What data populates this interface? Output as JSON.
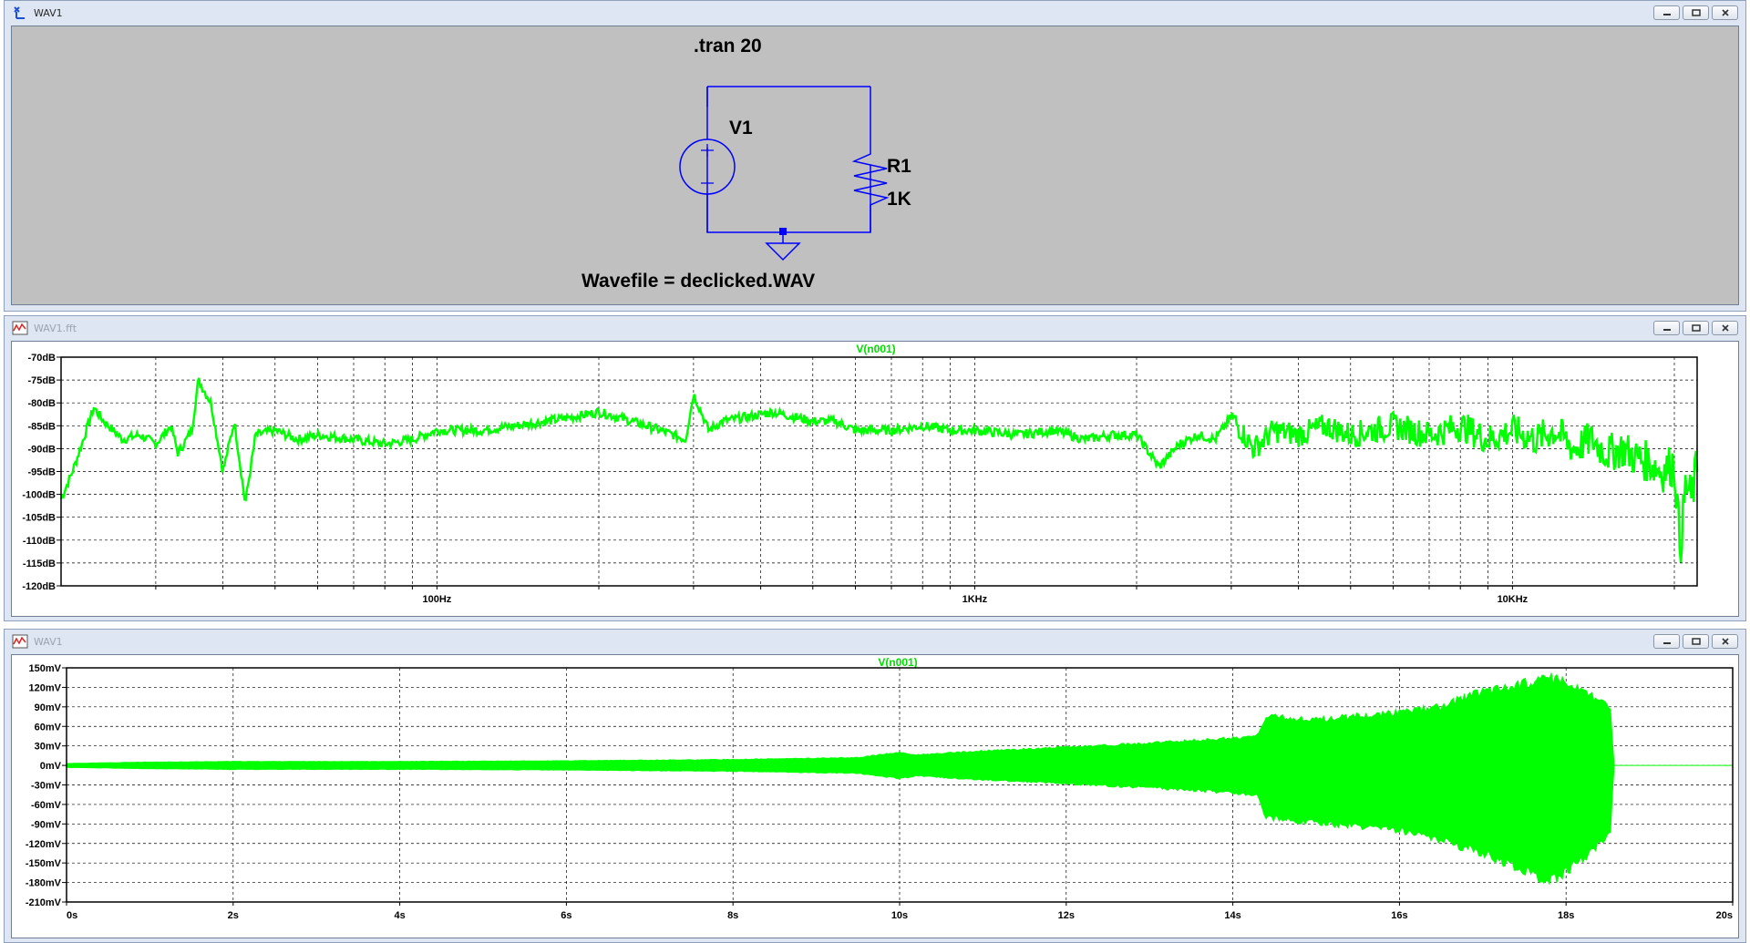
{
  "schematic_window": {
    "title": ".tran 20",
    "window_title": "WAV1",
    "directive": ".tran 20",
    "source_name": "V1",
    "resistor_name": "R1",
    "resistor_value": "1K",
    "wavefile_label": "Wavefile = declicked.WAV",
    "wire_color": "#0000ff"
  },
  "fft_window": {
    "window_title": "WAV1.fft",
    "trace_label": "V(n001)",
    "trace_color": "#00ff00",
    "chart_data": {
      "type": "line",
      "title": "",
      "xlabel": "",
      "ylabel": "",
      "x_scale": "log",
      "xlim": [
        20,
        22050
      ],
      "ylim": [
        -120,
        -70
      ],
      "y_tick_labels": [
        "-70dB",
        "-75dB",
        "-80dB",
        "-85dB",
        "-90dB",
        "-95dB",
        "-100dB",
        "-105dB",
        "-110dB",
        "-115dB",
        "-120dB"
      ],
      "y_ticks": [
        -70,
        -75,
        -80,
        -85,
        -90,
        -95,
        -100,
        -105,
        -110,
        -115,
        -120
      ],
      "x_tick_labels": [
        "100Hz",
        "1KHz",
        "10KHz"
      ],
      "x_ticks": [
        100,
        1000,
        10000
      ],
      "grid": true,
      "series": [
        {
          "name": "V(n001)",
          "x": [
            20,
            21,
            23,
            24,
            26,
            28,
            30,
            32,
            33,
            35,
            36,
            38,
            40,
            42,
            44,
            46,
            50,
            55,
            60,
            70,
            80,
            90,
            100,
            120,
            140,
            160,
            180,
            200,
            230,
            260,
            290,
            300,
            320,
            340,
            380,
            420,
            460,
            500,
            550,
            600,
            700,
            800,
            900,
            1000,
            1200,
            1400,
            1600,
            1800,
            2000,
            2200,
            2400,
            2600,
            2800,
            3000,
            3300,
            3600,
            4000,
            4500,
            5000,
            5500,
            6000,
            7000,
            8000,
            9000,
            10000,
            11000,
            12000,
            13000,
            14000,
            15000,
            16000,
            17000,
            18000,
            19000,
            20000,
            20500,
            21000,
            21500,
            22050
          ],
          "values": [
            -101,
            -95,
            -81,
            -84,
            -88,
            -87,
            -89,
            -85,
            -91,
            -86,
            -75,
            -80,
            -95,
            -84,
            -102,
            -87,
            -86,
            -88,
            -87,
            -88,
            -89,
            -88,
            -86,
            -86,
            -85,
            -84,
            -83,
            -82,
            -84,
            -86,
            -88,
            -78,
            -86,
            -84,
            -83,
            -82,
            -83,
            -84,
            -84,
            -86,
            -86,
            -85,
            -86,
            -86,
            -87,
            -86,
            -88,
            -87,
            -87,
            -94,
            -89,
            -87,
            -88,
            -83,
            -90,
            -86,
            -87,
            -85,
            -87,
            -86,
            -85,
            -87,
            -85,
            -88,
            -86,
            -88,
            -86,
            -90,
            -88,
            -91,
            -90,
            -92,
            -93,
            -95,
            -93,
            -112,
            -98,
            -101,
            -94
          ]
        }
      ]
    }
  },
  "tran_window": {
    "window_title": "WAV1",
    "trace_label": "V(n001)",
    "trace_color": "#00ff00",
    "chart_data": {
      "type": "area",
      "title": "",
      "xlabel": "",
      "ylabel": "",
      "xlim": [
        0,
        20
      ],
      "ylim": [
        -210,
        150
      ],
      "y_tick_labels": [
        "150mV",
        "120mV",
        "90mV",
        "60mV",
        "30mV",
        "0mV",
        "-30mV",
        "-60mV",
        "-90mV",
        "-120mV",
        "-150mV",
        "-180mV",
        "-210mV"
      ],
      "y_ticks": [
        150,
        120,
        90,
        60,
        30,
        0,
        -30,
        -60,
        -90,
        -120,
        -150,
        -180,
        -210
      ],
      "x_tick_labels": [
        "0s",
        "2s",
        "4s",
        "6s",
        "8s",
        "10s",
        "12s",
        "14s",
        "16s",
        "18s",
        "20s"
      ],
      "x_ticks": [
        0,
        2,
        4,
        6,
        8,
        10,
        12,
        14,
        16,
        18,
        20
      ],
      "grid": true,
      "series": [
        {
          "name": "V(n001)",
          "x": [
            0,
            1,
            2,
            4,
            6,
            8,
            9.5,
            10,
            10.2,
            11,
            12,
            13,
            14,
            14.3,
            14.4,
            15,
            16,
            16.5,
            17,
            17.5,
            17.8,
            18.2,
            18.55,
            18.56,
            20
          ],
          "upper": [
            3,
            5,
            6,
            6,
            7,
            9,
            12,
            20,
            16,
            22,
            28,
            34,
            42,
            45,
            75,
            70,
            82,
            90,
            115,
            125,
            135,
            115,
            85,
            0,
            0
          ],
          "lower": [
            -3,
            -5,
            -6,
            -6,
            -7,
            -9,
            -12,
            -20,
            -16,
            -22,
            -28,
            -34,
            -42,
            -45,
            -80,
            -88,
            -100,
            -115,
            -135,
            -160,
            -180,
            -145,
            -100,
            0,
            0
          ]
        }
      ]
    }
  }
}
